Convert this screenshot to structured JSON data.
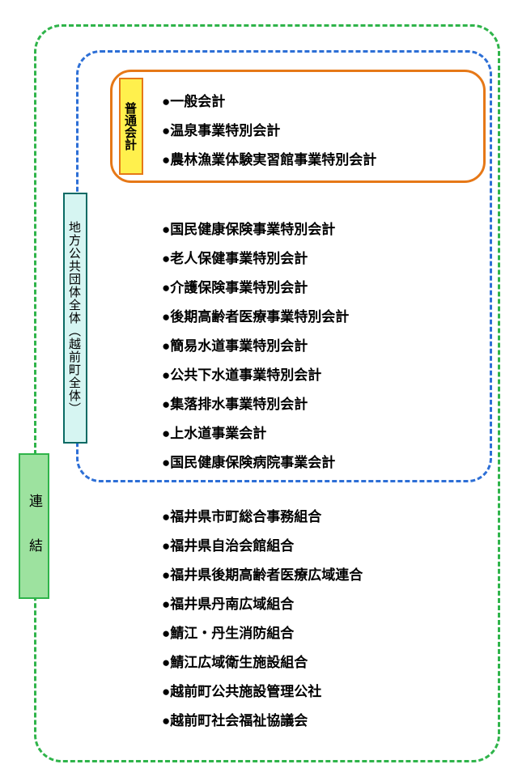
{
  "colors": {
    "outer_border": "#2fb44a",
    "middle_border": "#2d6fd6",
    "inner_border": "#e67817",
    "yellow_bg": "#fff04d",
    "yellow_border": "#e67817",
    "teal_bg": "#d6f5f2",
    "teal_border": "#0a6a64",
    "green_bg": "#9de29f",
    "green_border": "#2fb44a",
    "text": "#000000"
  },
  "labels": {
    "ordinary": "普通会計",
    "municipal": "地方公共団体全体（越前町全体）",
    "consolidated": "連結"
  },
  "lists": {
    "a": [
      "●一般会計",
      "●温泉事業特別会計",
      "●農林漁業体験実習館事業特別会計"
    ],
    "b": [
      "●国民健康保険事業特別会計",
      "●老人保健事業特別会計",
      "●介護保険事業特別会計",
      "●後期高齢者医療事業特別会計",
      "●簡易水道事業特別会計",
      "●公共下水道事業特別会計",
      "●集落排水事業特別会計",
      "●上水道事業会計",
      "●国民健康保険病院事業会計"
    ],
    "c": [
      "●福井県市町総合事務組合",
      "●福井県自治会館組合",
      "●福井県後期高齢者医療広域連合",
      "●福井県丹南広域組合",
      "●鯖江・丹生消防組合",
      "●鯖江広域衛生施設組合",
      "●越前町公共施設管理公社",
      "●越前町社会福祉協議会"
    ]
  }
}
